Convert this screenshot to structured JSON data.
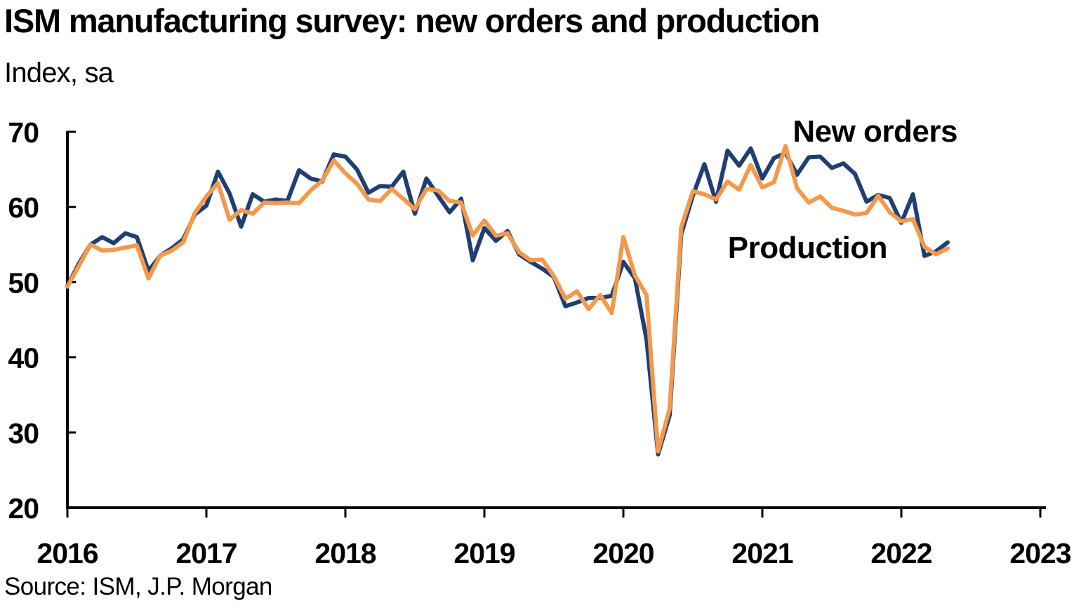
{
  "chart_data": {
    "type": "line",
    "title": "ISM manufacturing survey: new orders and production",
    "subtitle": "Index, sa",
    "source": "Source: ISM, J.P. Morgan",
    "ylim": [
      20,
      70
    ],
    "yticks": [
      20,
      30,
      40,
      50,
      60,
      70
    ],
    "xlim": [
      2016,
      2023
    ],
    "xticks": [
      2016,
      2017,
      2018,
      2019,
      2020,
      2021,
      2022,
      2023
    ],
    "grid": false,
    "legend": "inline labels",
    "series": [
      {
        "name": "New orders",
        "color": "#1f3f73",
        "start": "2016-01",
        "values": [
          49.5,
          52.5,
          55,
          56,
          55.2,
          56.5,
          56,
          51.5,
          53.5,
          54.5,
          55.7,
          59,
          60.2,
          64.7,
          61.8,
          57.4,
          61.7,
          60.7,
          61,
          60.8,
          64.9,
          63.8,
          63.4,
          67,
          66.7,
          65,
          61.9,
          62.8,
          62.7,
          64.7,
          59.1,
          63.8,
          61.5,
          59.3,
          61.1,
          52.9,
          57.2,
          55.5,
          56.8,
          53.7,
          52.7,
          51.8,
          50.7,
          46.8,
          47.3,
          47.9,
          47.9,
          48.2,
          52.7,
          50.5,
          42.4,
          27.1,
          32.3,
          56.4,
          61.5,
          65.7,
          60.7,
          67.5,
          65.5,
          67.8,
          63.8,
          66.5,
          67.2,
          64.3,
          66.6,
          66.7,
          65.2,
          65.8,
          64.4,
          60.7,
          61.6,
          61.2,
          57.9,
          61.7,
          53.5,
          54.1,
          55.3
        ]
      },
      {
        "name": "Production",
        "color": "#f4994c",
        "start": "2016-01",
        "values": [
          49.4,
          52.2,
          55,
          54.2,
          54.3,
          54.6,
          54.9,
          50.5,
          53.5,
          54.2,
          55.3,
          59.2,
          61.4,
          63.2,
          58.3,
          59.6,
          59.1,
          60.6,
          60.5,
          60.6,
          60.5,
          62.2,
          63.5,
          66.2,
          64.5,
          63.1,
          61,
          60.8,
          62.4,
          61.1,
          59.7,
          62.4,
          62.2,
          60.8,
          60.6,
          56.2,
          58.2,
          56.2,
          56.5,
          54,
          52.9,
          53,
          50.8,
          47.8,
          48.8,
          46.4,
          48.3,
          45.9,
          56,
          50.9,
          48.3,
          27.5,
          33.2,
          57.3,
          62.1,
          61.7,
          61,
          63.4,
          62.3,
          65.6,
          62.6,
          63.3,
          68.1,
          62.5,
          60.6,
          61.4,
          59.9,
          59.5,
          59.0,
          59.2,
          61.5,
          59.3,
          58.1,
          58.4,
          54.7,
          53.7,
          54.5
        ]
      }
    ]
  }
}
